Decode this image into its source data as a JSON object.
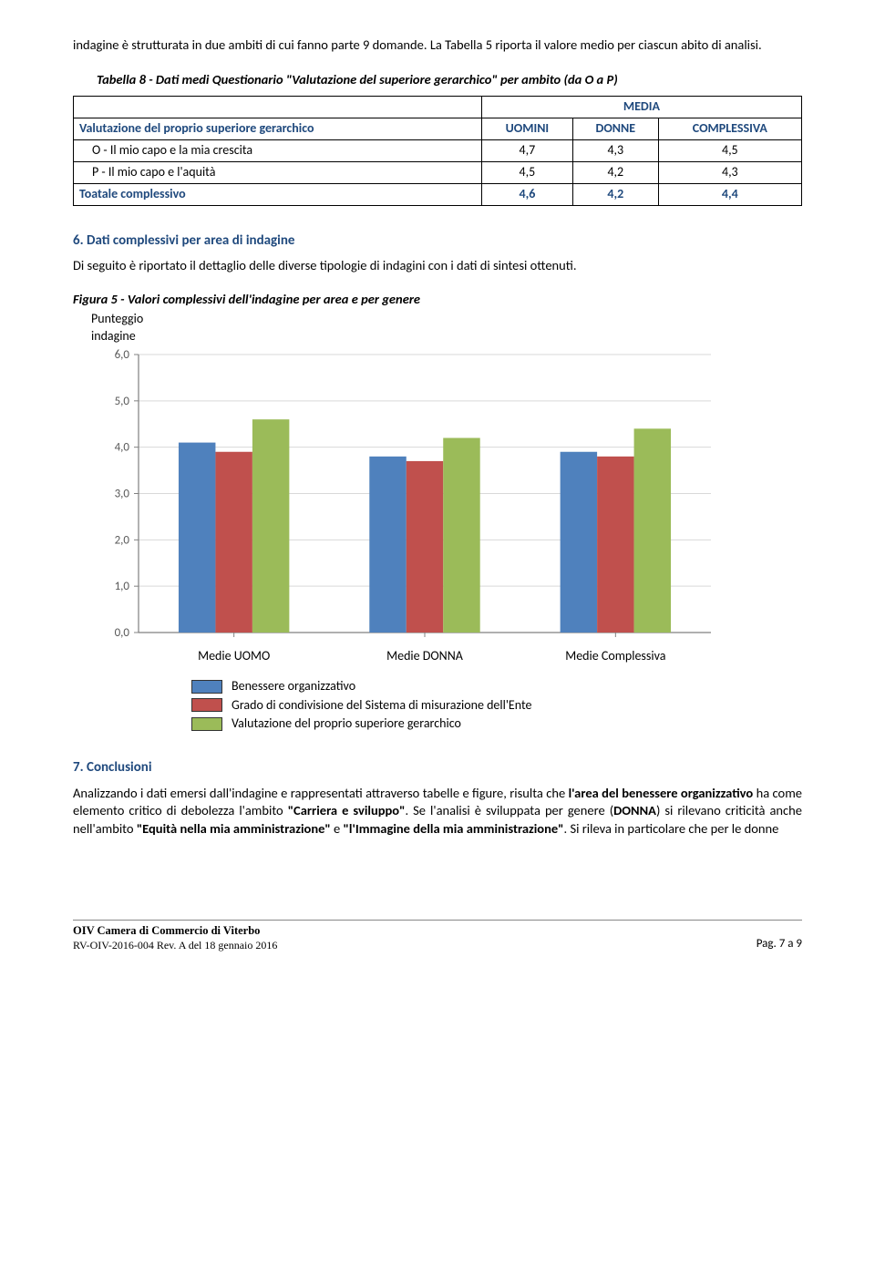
{
  "intro": "indagine è strutturata in due ambiti di cui fanno parte 9 domande. La Tabella 5 riporta il valore medio per ciascun abito di analisi.",
  "table8": {
    "caption": "Tabella 8 - Dati medi Questionario \"Valutazione del superiore gerarchico\" per ambito (da O a P)",
    "media_header": "MEDIA",
    "row_head": "Valutazione del proprio superiore gerarchico",
    "col1": "UOMINI",
    "col2": "DONNE",
    "col3": "COMPLESSIVA",
    "rows": [
      {
        "label": "O - Il mio capo e la mia crescita",
        "u": "4,7",
        "d": "4,3",
        "c": "4,5"
      },
      {
        "label": "P - Il mio capo e l'aquità",
        "u": "4,5",
        "d": "4,2",
        "c": "4,3"
      }
    ],
    "total_label": "Toatale complessivo",
    "total": {
      "u": "4,6",
      "d": "4,2",
      "c": "4,4"
    }
  },
  "section6": {
    "title": "6. Dati complessivi per area di indagine",
    "text": "Di seguito è riportato il dettaglio delle diverse tipologie di indagini con i dati di sintesi ottenuti."
  },
  "figure5": {
    "caption": "Figura 5 - Valori complessivi dell'indagine  per area e per genere",
    "yaxis_label_l1": "Punteggio",
    "yaxis_label_l2": "indagine",
    "type": "bar",
    "ylim": [
      0,
      6
    ],
    "ytick_step": 1.0,
    "yticks": [
      "0,0",
      "1,0",
      "2,0",
      "3,0",
      "4,0",
      "5,0",
      "6,0"
    ],
    "categories": [
      "Medie UOMO",
      "Medie DONNA",
      "Medie Complessiva"
    ],
    "series": [
      {
        "name": "Benessere organizzativo",
        "color": "#4f81bd",
        "values": [
          4.1,
          3.8,
          3.9
        ]
      },
      {
        "name": "Grado di condivisione del Sistema di misurazione dell'Ente",
        "color": "#c0504d",
        "values": [
          3.9,
          3.7,
          3.8
        ]
      },
      {
        "name": "Valutazione del proprio superiore gerarchico",
        "color": "#9bbb59",
        "values": [
          4.6,
          4.2,
          4.4
        ]
      }
    ],
    "background_color": "#ffffff",
    "grid_color": "#d9d9d9",
    "axis_color": "#808080",
    "bar_group_width_ratio": 0.58,
    "label_fontsize": 13,
    "tick_fontsize": 13
  },
  "section7": {
    "title": "7. Conclusioni",
    "text_parts": [
      {
        "t": "Analizzando i dati emersi dall'indagine e rappresentati attraverso tabelle e figure, risulta che ",
        "b": false
      },
      {
        "t": "l'area del benessere organizzativo",
        "b": true
      },
      {
        "t": " ha come elemento critico di debolezza l'ambito ",
        "b": false
      },
      {
        "t": "\"Carriera e sviluppo\"",
        "b": true
      },
      {
        "t": ". Se l'analisi è sviluppata per genere (",
        "b": false
      },
      {
        "t": "DONNA",
        "b": true
      },
      {
        "t": ") si rilevano criticità anche nell'ambito  ",
        "b": false
      },
      {
        "t": "\"Equità nella mia amministrazione\"",
        "b": true
      },
      {
        "t": " e ",
        "b": false
      },
      {
        "t": "\"l'Immagine della mia amministrazione\"",
        "b": true
      },
      {
        "t": ". Si rileva in particolare che per le donne",
        "b": false
      }
    ]
  },
  "footer": {
    "l1": "OIV Camera di Commercio di Viterbo",
    "l2": "RV-OIV-2016-004 Rev. A del 18 gennaio 2016",
    "right": "Pag. 7 a 9"
  }
}
